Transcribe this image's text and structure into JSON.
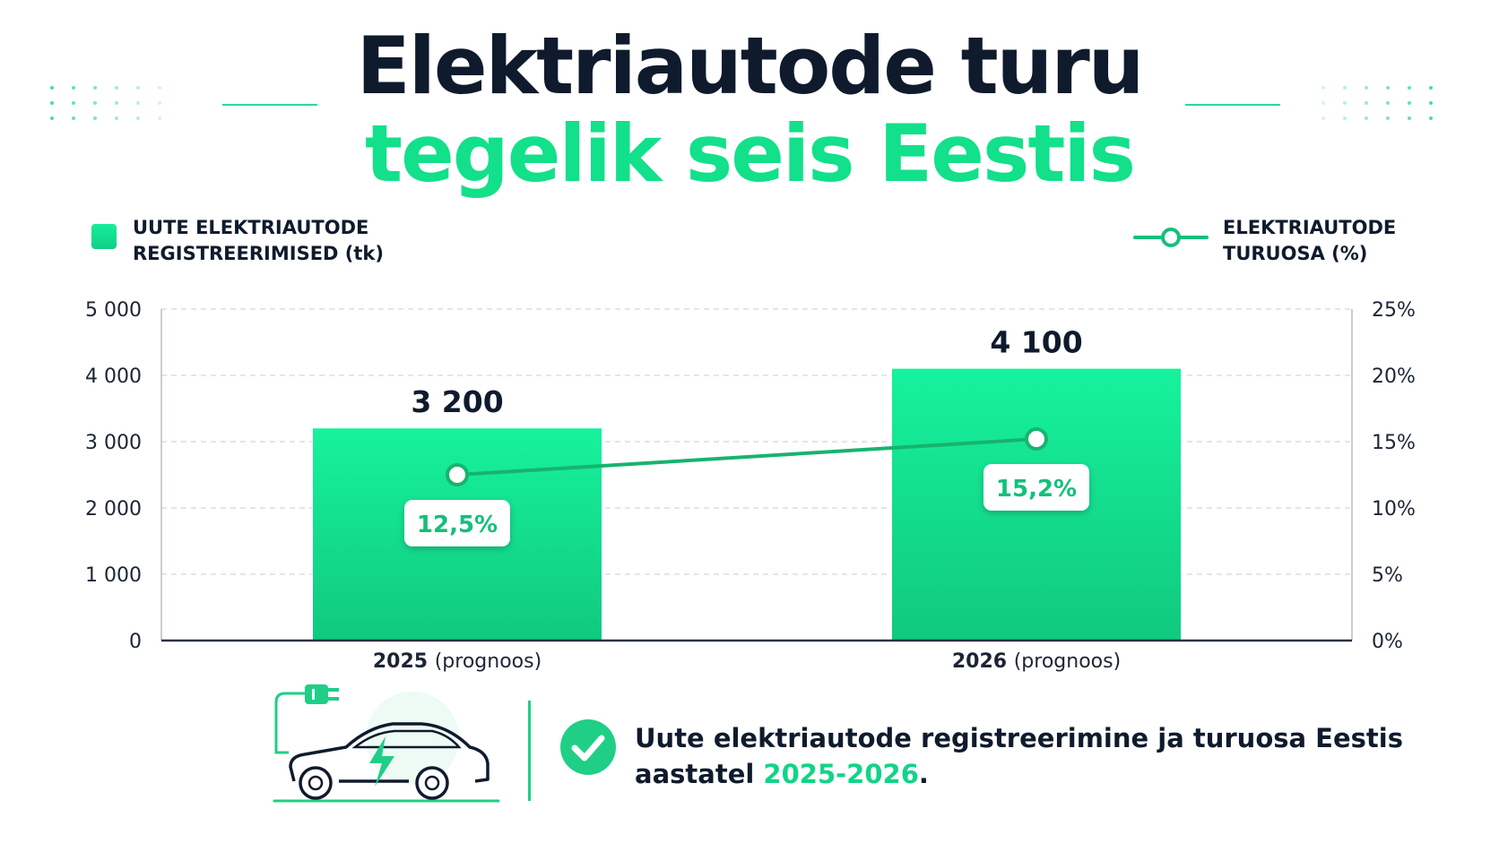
{
  "title": {
    "line1": "Elektriautode turu",
    "line2": "tegelik seis Eestis"
  },
  "colors": {
    "accent": "#12e08a",
    "bar_top": "#16f29d",
    "bar_bottom": "#10c97f",
    "line": "#17b46f",
    "text_dark": "#0f1b2d"
  },
  "legend": {
    "bars": "UUTE ELEKTRIAUTODE\nREGISTREERIMISED (tk)",
    "line": "ELEKTRIAUTODE\nTURUOSA (%)"
  },
  "chart_data": {
    "type": "bar",
    "categories": [
      {
        "year": "2025",
        "note": "(prognoos)"
      },
      {
        "year": "2026",
        "note": "(prognoos)"
      }
    ],
    "series": [
      {
        "name": "UUTE ELEKTRIAUTODE REGISTREERIMISED (tk)",
        "type": "bar",
        "axis": "left",
        "values": [
          3200,
          4100
        ],
        "labels": [
          "3 200",
          "4 100"
        ]
      },
      {
        "name": "ELEKTRIAUTODE TURUOSA (%)",
        "type": "line",
        "axis": "right",
        "values": [
          12.5,
          15.2
        ],
        "labels": [
          "12,5%",
          "15,2%"
        ]
      }
    ],
    "y_left": {
      "min": 0,
      "max": 5000,
      "ticks": [
        0,
        1000,
        2000,
        3000,
        4000,
        5000
      ],
      "tick_labels": [
        "0",
        "1 000",
        "2 000",
        "3 000",
        "4 000",
        "5 000"
      ]
    },
    "y_right": {
      "min": 0,
      "max": 25,
      "ticks": [
        0,
        5,
        10,
        15,
        20,
        25
      ],
      "tick_labels": [
        "0%",
        "5%",
        "10%",
        "15%",
        "20%",
        "25%"
      ]
    },
    "grid": true,
    "legend_placement": "top"
  },
  "footer": {
    "text_before": "Uute elektriautode registreerimine ja turuosa Eestis aastatel ",
    "highlight": "2025-2026",
    "text_after": "."
  },
  "icons": {
    "car": "electric-car-icon",
    "plug": "plug-icon",
    "check": "check-circle-icon"
  }
}
